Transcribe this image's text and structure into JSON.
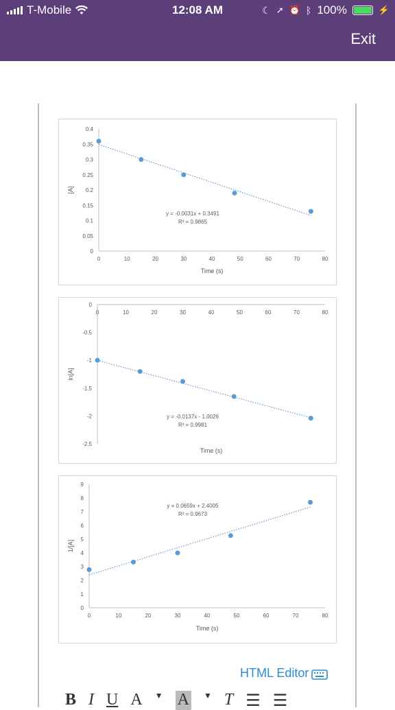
{
  "status_bar": {
    "carrier": "T-Mobile",
    "time": "12:08 AM",
    "battery": "100%",
    "battery_level": 1.0,
    "icons": [
      "signal-bars-icon",
      "wifi-icon",
      "moon-icon",
      "location-arrow-icon",
      "alarm-icon",
      "bluetooth-icon",
      "battery-icon",
      "charging-icon"
    ]
  },
  "header": {
    "exit_label": "Exit",
    "background_color": "#5c3f78"
  },
  "editor": {
    "html_editor_label": "HTML Editor",
    "toolbar": {
      "bold": "B",
      "italic": "I",
      "underline": "U",
      "font_color": "A",
      "highlight": "A",
      "clear_format": "T"
    },
    "link_color": "#2a8bd6"
  },
  "chart_data": [
    {
      "type": "scatter",
      "x": [
        0,
        15,
        30,
        48,
        75
      ],
      "y": [
        0.36,
        0.3,
        0.25,
        0.19,
        0.13
      ],
      "xlabel": "Time (s)",
      "ylabel": "[A]",
      "xticks": [
        "0",
        "10",
        "20",
        "30",
        "40",
        "50",
        "60",
        "70",
        "80"
      ],
      "yticks": [
        "0",
        "0.05",
        "0.1",
        "0.15",
        "0.2",
        "0.25",
        "0.3",
        "0.35",
        "0.4"
      ],
      "xlim": [
        0,
        80
      ],
      "ylim": [
        0,
        0.4
      ],
      "trendline": {
        "slope": -0.0031,
        "intercept": 0.3491
      },
      "equation": "y = -0.0031x + 0.3491",
      "r2": "R² = 0.9865",
      "marker_color": "#5b9bd5"
    },
    {
      "type": "scatter",
      "x": [
        0,
        15,
        30,
        48,
        75
      ],
      "y": [
        -1.0,
        -1.2,
        -1.38,
        -1.65,
        -2.04
      ],
      "xlabel": "Time (s)",
      "ylabel": "ln[A]",
      "xticks": [
        "0",
        "10",
        "20",
        "30",
        "40",
        "50",
        "60",
        "70",
        "80"
      ],
      "yticks": [
        "0",
        "-0.5",
        "-1",
        "-1.5",
        "-2",
        "-2.5"
      ],
      "xlim": [
        0,
        80
      ],
      "ylim": [
        -2.5,
        0
      ],
      "trendline": {
        "slope": -0.0137,
        "intercept": -1.0026
      },
      "equation": "y = -0.0137x - 1.0026",
      "r2": "R² = 0.9981",
      "marker_color": "#5b9bd5"
    },
    {
      "type": "scatter",
      "x": [
        0,
        15,
        30,
        48,
        75
      ],
      "y": [
        2.78,
        3.33,
        4.0,
        5.26,
        7.69
      ],
      "xlabel": "Time (s)",
      "ylabel": "1/[A]",
      "xticks": [
        "0",
        "10",
        "20",
        "30",
        "40",
        "50",
        "60",
        "70",
        "80"
      ],
      "yticks": [
        "0",
        "1",
        "2",
        "3",
        "4",
        "5",
        "6",
        "7",
        "8",
        "9"
      ],
      "xlim": [
        0,
        80
      ],
      "ylim": [
        0,
        9
      ],
      "trendline": {
        "slope": 0.0659,
        "intercept": 2.4005
      },
      "equation": "y = 0.0659x + 2.4005",
      "r2": "R² = 0.9673",
      "marker_color": "#5b9bd5"
    }
  ]
}
